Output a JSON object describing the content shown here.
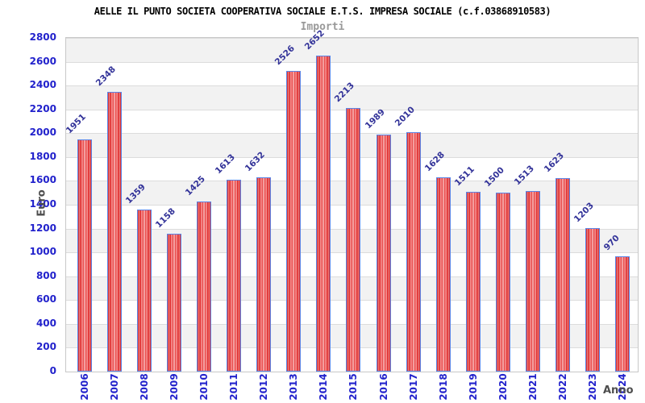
{
  "chart_data": {
    "type": "bar",
    "title": "AELLE IL PUNTO SOCIETA COOPERATIVA SOCIALE E.T.S. IMPRESA SOCIALE (c.f.03868910583)",
    "subtitle": "Importi",
    "xlabel": "Anno",
    "ylabel": "Euro",
    "categories": [
      "2006",
      "2007",
      "2008",
      "2009",
      "2010",
      "2011",
      "2012",
      "2013",
      "2014",
      "2015",
      "2016",
      "2017",
      "2018",
      "2019",
      "2020",
      "2021",
      "2022",
      "2023",
      "2024"
    ],
    "values": [
      1951,
      2348,
      1359,
      1158,
      1425,
      1613,
      1632,
      2526,
      2652,
      2213,
      1989,
      2010,
      1628,
      1511,
      1500,
      1513,
      1623,
      1203,
      970
    ],
    "ylim": [
      0,
      2800
    ],
    "ytick_step": 200,
    "yticks": [
      0,
      200,
      400,
      600,
      800,
      1000,
      1200,
      1400,
      1600,
      1800,
      2000,
      2200,
      2400,
      2600,
      2800
    ],
    "grid": true,
    "legend_position": "none",
    "bar_value_labels_rotation_deg": -45,
    "x_tick_rotation_deg": -90,
    "colors": {
      "background": "#ffffff",
      "title": "#000000",
      "subtitle": "#999999",
      "bar_fill_dark": "#e21d1d",
      "bar_fill_light": "#f8a9a9",
      "bar_border": "#5c85e6",
      "value_label": "#333399",
      "tick_label": "#2222cc",
      "axis_title": "#4d4d4d",
      "band": "#f2f2f2",
      "gridline": "#dcdcdc",
      "plot_border": "#c8c8c8"
    }
  }
}
